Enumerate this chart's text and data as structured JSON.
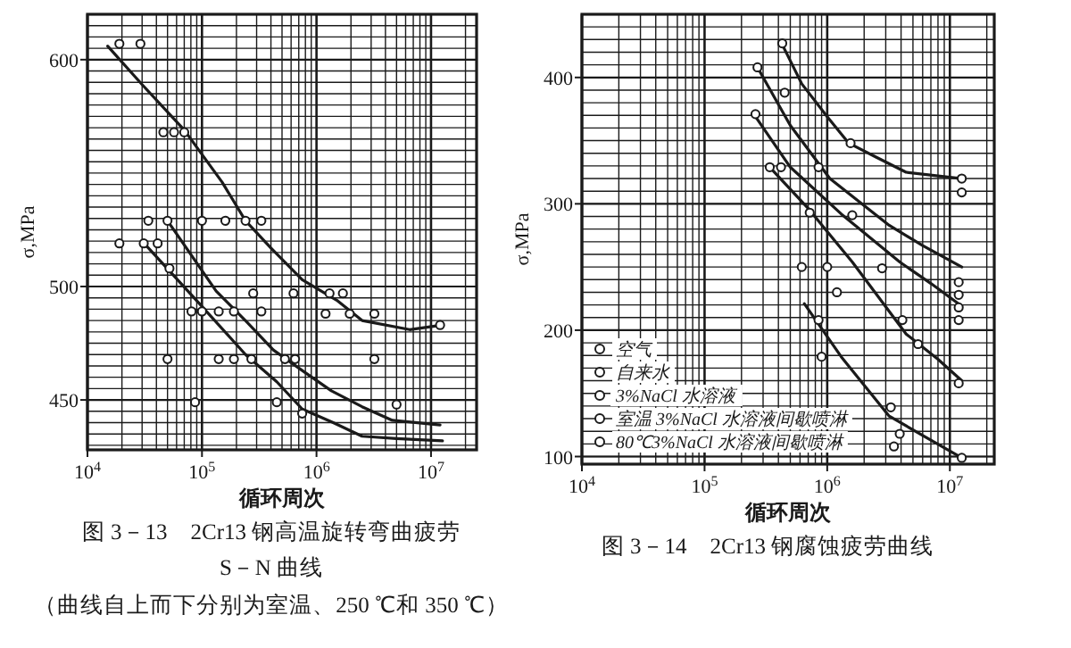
{
  "chart_data": [
    {
      "type": "line",
      "title": "图 3－13　2Cr13 钢高温旋转弯曲疲劳",
      "subtitle": "S－N 曲线",
      "annotations": [
        "（曲线自上而下分别为室温、250 ℃和 350 ℃）"
      ],
      "xlabel": "循环周次",
      "ylabel": "σ,MPa",
      "log": "x",
      "grid": true,
      "xlim": [
        10000,
        25000000
      ],
      "ylim": [
        428,
        620
      ],
      "xticks": [
        {
          "value": 10000,
          "label": "10$^{4}$"
        },
        {
          "value": 100000,
          "label": "10$^{5}$"
        },
        {
          "value": 1000000,
          "label": "10$^{6}$"
        },
        {
          "value": 10000000,
          "label": "10$^{7}$"
        }
      ],
      "yticks": [
        450,
        500,
        600
      ],
      "series": [
        {
          "color": "#1a1a1a",
          "x": [
            15000,
            30000,
            70000,
            150000,
            240000,
            400000,
            750000,
            1500000,
            2500000,
            6500000,
            12600000
          ],
          "values": [
            606,
            589,
            569,
            546,
            529,
            517,
            503,
            494,
            485,
            481,
            483
          ]
        },
        {
          "color": "#1a1a1a",
          "x": [
            50000,
            133000,
            250000,
            420000,
            800000,
            1350000,
            2500000,
            4600000,
            12000000
          ],
          "values": [
            529,
            498,
            484,
            472,
            462,
            454,
            447,
            441,
            439
          ]
        },
        {
          "color": "#1a1a1a",
          "x": [
            30000,
            93000,
            240000,
            450000,
            750000,
            1400000,
            2500000,
            5000000,
            12600000
          ],
          "values": [
            520,
            493,
            470,
            458,
            446,
            440,
            434,
            433,
            432
          ]
        },
        {
          "type": "scatter",
          "marker": "circle",
          "color": "#1a1a1a",
          "x": [
            19000,
            29000,
            46000,
            57000,
            70000,
            34000,
            50000,
            100000,
            160000,
            240000,
            330000,
            19000,
            31000,
            41000,
            52000,
            280000,
            81000,
            100000,
            140000,
            190000,
            330000,
            630000,
            1300000,
            1700000,
            1200000,
            1950000,
            3200000,
            12000000,
            50000,
            140000,
            190000,
            270000,
            530000,
            650000,
            3200000,
            87000,
            450000,
            5000000,
            750000
          ],
          "values": [
            607,
            607,
            568,
            568,
            568,
            529,
            529,
            529,
            529,
            529,
            529,
            519,
            519,
            519,
            508,
            497,
            489,
            489,
            489,
            489,
            489,
            497,
            497,
            497,
            488,
            488,
            488,
            483,
            468,
            468,
            468,
            468,
            468,
            468,
            468,
            449,
            449,
            448,
            444
          ]
        }
      ]
    },
    {
      "type": "line",
      "title": "图 3－14　2Cr13 钢腐蚀疲劳曲线",
      "xlabel": "循环周次",
      "ylabel": "σ,MPa",
      "log": "x",
      "grid": true,
      "legend": "bottom left",
      "xlim": [
        10000,
        23000000
      ],
      "ylim": [
        94,
        450
      ],
      "xticks": [
        {
          "value": 10000,
          "label": "10$^{4}$"
        },
        {
          "value": 100000,
          "label": "10$^{5}$"
        },
        {
          "value": 1000000,
          "label": "10$^{6}$"
        },
        {
          "value": 10000000,
          "label": "10$^{7}$"
        }
      ],
      "yticks": [
        100,
        200,
        300,
        400
      ],
      "series": [
        {
          "color": "#1a1a1a",
          "x": [
            420000,
            620000,
            1000000,
            1500000,
            2500000,
            4400000,
            12500000
          ],
          "values": [
            428,
            395,
            369,
            348,
            337,
            325,
            320
          ]
        },
        {
          "color": "#1a1a1a",
          "x": [
            270000,
            500000,
            1050000,
            3200000,
            6000000,
            12500000
          ],
          "values": [
            408,
            362,
            320,
            283,
            267,
            250
          ]
        },
        {
          "color": "#1a1a1a",
          "x": [
            260000,
            500000,
            1300000,
            3900000,
            7000000,
            12500000
          ],
          "values": [
            369,
            329,
            292,
            254,
            237,
            219
          ]
        },
        {
          "color": "#1a1a1a",
          "x": [
            340000,
            690000,
            1600000,
            4400000,
            8000000,
            12500000
          ],
          "values": [
            329,
            297,
            254,
            197,
            177,
            160
          ]
        },
        {
          "color": "#1a1a1a",
          "x": [
            650000,
            1300000,
            3200000,
            7000000,
            12500000
          ],
          "values": [
            221,
            179,
            132,
            113,
            99
          ]
        },
        {
          "type": "scatter",
          "name": "空气",
          "marker": "circle",
          "color": "#1a1a1a",
          "x": [
            430000,
            450000,
            1550000,
            12500000,
            12500000
          ],
          "values": [
            427,
            388,
            348,
            320,
            309
          ]
        },
        {
          "type": "scatter",
          "name": "自来水",
          "marker": "circle",
          "color": "#1a1a1a",
          "x": [
            270000,
            850000,
            1600000,
            2800000,
            11800000,
            11800000
          ],
          "values": [
            408,
            329,
            291,
            249,
            238,
            228
          ]
        },
        {
          "type": "scatter",
          "name": "3%NaCl 水溶液",
          "marker": "circle",
          "color": "#1a1a1a",
          "x": [
            260000,
            420000,
            720000,
            1000000,
            11800000,
            11800000
          ],
          "values": [
            371,
            329,
            293,
            250,
            218,
            208
          ]
        },
        {
          "type": "scatter",
          "name": "室温 3%NaCl 水溶液间歇喷淋",
          "marker": "circle",
          "color": "#1a1a1a",
          "x": [
            340000,
            620000,
            1200000,
            4100000,
            5500000,
            11800000
          ],
          "values": [
            329,
            250,
            230,
            208,
            189,
            158
          ]
        },
        {
          "type": "scatter",
          "name": "80℃3%NaCl 水溶液间歇喷淋",
          "marker": "circle",
          "color": "#1a1a1a",
          "x": [
            850000,
            900000,
            3300000,
            3900000,
            3500000,
            12500000
          ],
          "values": [
            208,
            179,
            139,
            118,
            108,
            99
          ]
        }
      ]
    }
  ]
}
